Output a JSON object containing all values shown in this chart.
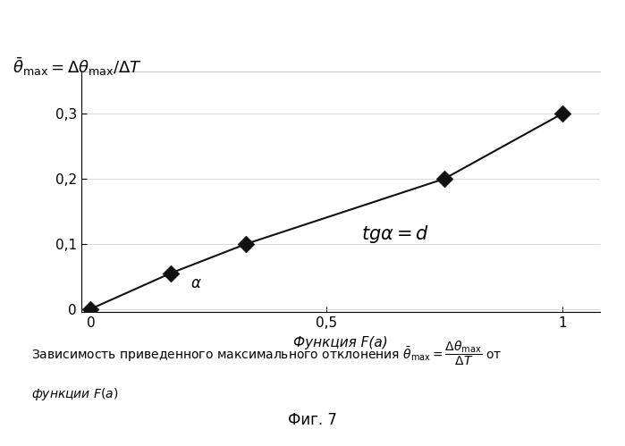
{
  "x_data": [
    0,
    0.17,
    0.33,
    0.75,
    1.0
  ],
  "y_data": [
    0,
    0.055,
    0.1,
    0.2,
    0.3
  ],
  "xlim": [
    -0.02,
    1.08
  ],
  "ylim": [
    -0.005,
    0.365
  ],
  "xticks": [
    0,
    0.5,
    1
  ],
  "yticks": [
    0,
    0.1,
    0.2,
    0.3
  ],
  "xlabel": "Функция F(a)",
  "ylabel_formula": "$\\bar{\\theta}_{\\mathrm{max}} = \\Delta\\theta_{\\mathrm{max}}/\\Delta T$",
  "annotation_tg": "$tg\\alpha = d$",
  "annotation_alpha": "$\\alpha$",
  "line_color": "#111111",
  "marker_color": "#111111",
  "bg_color": "#ffffff",
  "caption_main": "Зависимость приведенного максимального отклонения $\\bar{\\theta}_{\\mathrm{max}} = \\dfrac{\\Delta\\theta_{\\mathrm{max}}}{\\Delta T}$ от",
  "caption_line2": "функции $F(a)$",
  "fig_label": "Фиг. 7",
  "title_fontsize": 13,
  "label_fontsize": 11,
  "tick_fontsize": 11,
  "annotation_fontsize": 15,
  "caption_fontsize": 10,
  "fig_fontsize": 12
}
